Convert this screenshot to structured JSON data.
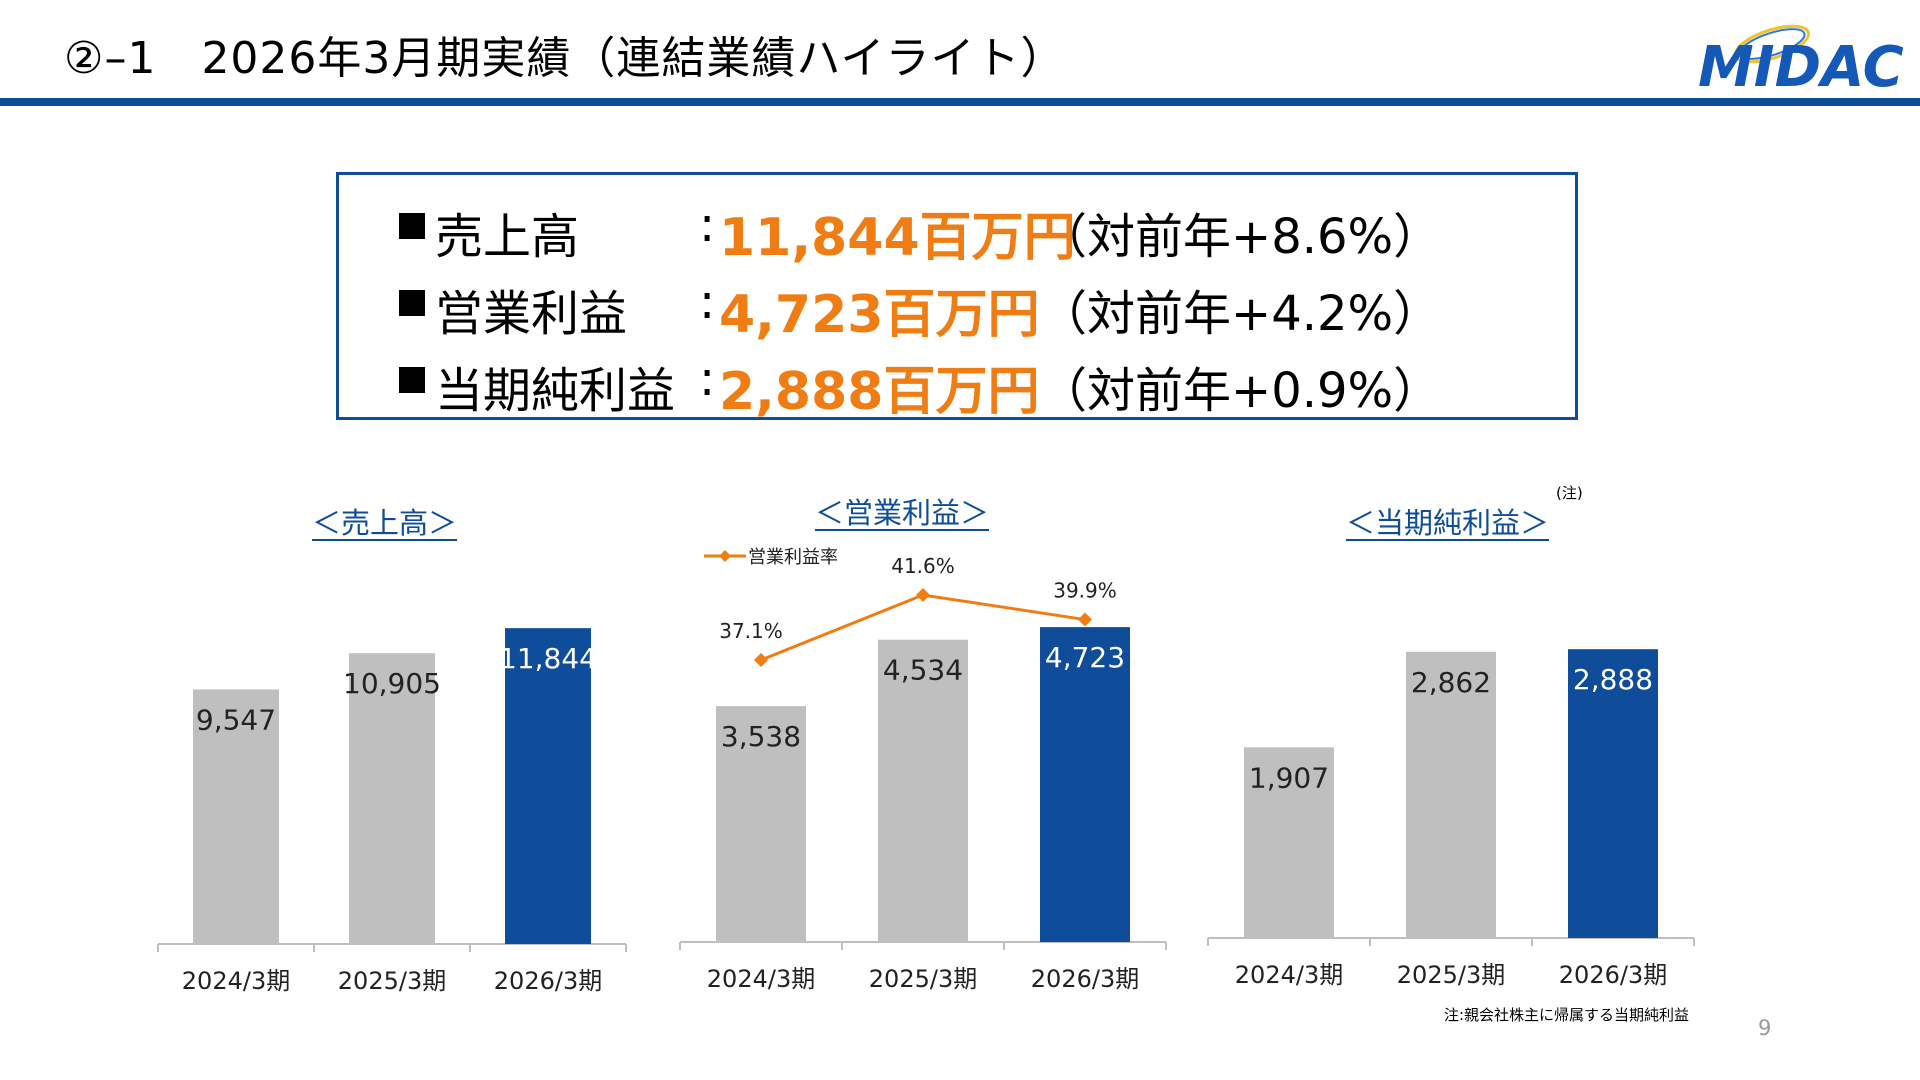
{
  "header": {
    "title": "②–1　2026年3月期実績（連結業績ハイライト）",
    "logo_text": "MIDAC",
    "accent_color": "#0f4c9a"
  },
  "highlights": [
    {
      "label": "売上高",
      "colon": ":",
      "value": "11,844百万円",
      "change": "（対前年+8.6%）"
    },
    {
      "label": "営業利益",
      "colon": ":",
      "value": "4,723百万円",
      "change": "（対前年+4.2%）"
    },
    {
      "label": "当期純利益",
      "colon": ":",
      "value": "2,888百万円",
      "change": "（対前年+0.9%）"
    }
  ],
  "chart_data": [
    {
      "type": "bar",
      "title": "＜売上高＞",
      "categories": [
        "2024/3期",
        "2025/3期",
        "2026/3期"
      ],
      "values": [
        9547,
        10905,
        11844
      ],
      "labels": [
        "9,547",
        "10,905",
        "11,844"
      ],
      "colors": [
        "#bfbfbf",
        "#bfbfbf",
        "#0f4c9a"
      ]
    },
    {
      "type": "bar",
      "title": "＜営業利益＞",
      "categories": [
        "2024/3期",
        "2025/3期",
        "2026/3期"
      ],
      "values": [
        3538,
        4534,
        4723
      ],
      "labels": [
        "3,538",
        "4,534",
        "4,723"
      ],
      "colors": [
        "#bfbfbf",
        "#bfbfbf",
        "#0f4c9a"
      ],
      "line_series": {
        "name": "営業利益率",
        "values": [
          37.1,
          41.6,
          39.9
        ],
        "labels": [
          "37.1%",
          "41.6%",
          "39.9%"
        ],
        "color": "#f07d13"
      }
    },
    {
      "type": "bar",
      "title": "＜当期純利益＞",
      "title_note": "(注)",
      "categories": [
        "2024/3期",
        "2025/3期",
        "2026/3期"
      ],
      "values": [
        1907,
        2862,
        2888
      ],
      "labels": [
        "1,907",
        "2,862",
        "2,888"
      ],
      "colors": [
        "#bfbfbf",
        "#bfbfbf",
        "#0f4c9a"
      ]
    }
  ],
  "footnote": "注:親会社株主に帰属する当期純利益",
  "page_number": "9"
}
